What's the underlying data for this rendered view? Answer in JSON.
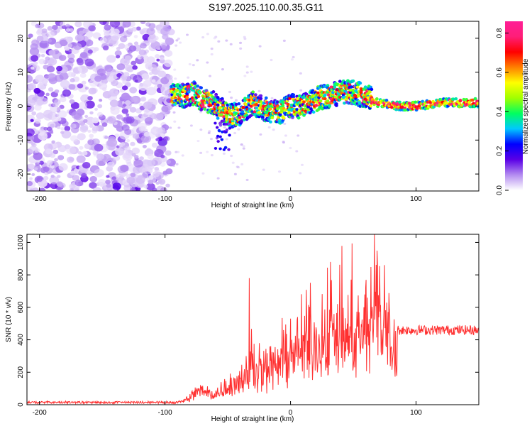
{
  "title": "S197.2025.110.00.35.G11",
  "chart_data": [
    {
      "type": "heatmap",
      "xlabel": "Height of straight line (km)",
      "ylabel": "Frequency (Hz)",
      "xlim": [
        -210,
        150
      ],
      "ylim": [
        -25,
        25
      ],
      "xticks": [
        -200,
        -100,
        0,
        100
      ],
      "yticks": [
        -20,
        -10,
        0,
        10,
        20
      ],
      "colorbar": {
        "label": "Normalized spectral amplitude",
        "range": [
          0,
          0.86
        ],
        "ticks": [
          0.0,
          0.2,
          0.4,
          0.6,
          0.8
        ],
        "colors": [
          "#ffffff",
          "#b48cf0",
          "#5a00e6",
          "#0000ff",
          "#00c8ff",
          "#00ff60",
          "#a0ff00",
          "#ffff00",
          "#ff8000",
          "#ff0000",
          "#ff1e78",
          "#ff1e96"
        ]
      },
      "regions": [
        {
          "name": "noise",
          "x_range": [
            -210,
            -95
          ],
          "y_range": [
            -25,
            25
          ],
          "level": 0.05
        },
        {
          "name": "signal-track",
          "centerline": [
            [
              -95,
              3
            ],
            [
              -85,
              3
            ],
            [
              -78,
              4
            ],
            [
              -70,
              2
            ],
            [
              -62,
              1
            ],
            [
              -55,
              -1
            ],
            [
              -48,
              -3
            ],
            [
              -40,
              -2
            ],
            [
              -30,
              1
            ],
            [
              -20,
              -1
            ],
            [
              -10,
              -2
            ],
            [
              0,
              0
            ],
            [
              10,
              0
            ],
            [
              20,
              2
            ],
            [
              30,
              3
            ],
            [
              40,
              4
            ],
            [
              50,
              4
            ],
            [
              60,
              3
            ],
            [
              65,
              2
            ],
            [
              70,
              1
            ],
            [
              85,
              0
            ],
            [
              100,
              0
            ],
            [
              120,
              1
            ],
            [
              150,
              1
            ]
          ],
          "level_low": 0.3,
          "level_high": 0.85
        }
      ]
    },
    {
      "type": "line",
      "xlabel": "Height of straight line (km)",
      "ylabel": "SNR (10 * v/v)",
      "xlim": [
        -210,
        150
      ],
      "ylim": [
        0,
        1050
      ],
      "xticks": [
        -200,
        -100,
        0,
        100
      ],
      "yticks": [
        0,
        200,
        400,
        600,
        800,
        1000
      ],
      "color": "#ff3030",
      "envelope": [
        {
          "x": -210,
          "base": 20,
          "amp": 10
        },
        {
          "x": -90,
          "base": 20,
          "amp": 10
        },
        {
          "x": -80,
          "base": 40,
          "amp": 60
        },
        {
          "x": -75,
          "base": 100,
          "amp": 120
        },
        {
          "x": -60,
          "base": 80,
          "amp": 80
        },
        {
          "x": -45,
          "base": 150,
          "amp": 200
        },
        {
          "x": -35,
          "base": 180,
          "amp": 250
        },
        {
          "x": -30,
          "base": 250,
          "amp": 520
        },
        {
          "x": -20,
          "base": 220,
          "amp": 300
        },
        {
          "x": -10,
          "base": 280,
          "amp": 400
        },
        {
          "x": 0,
          "base": 350,
          "amp": 450
        },
        {
          "x": 15,
          "base": 400,
          "amp": 600
        },
        {
          "x": 30,
          "base": 450,
          "amp": 700
        },
        {
          "x": 45,
          "base": 420,
          "amp": 750
        },
        {
          "x": 60,
          "base": 450,
          "amp": 780
        },
        {
          "x": 67,
          "base": 600,
          "amp": 1050
        },
        {
          "x": 75,
          "base": 550,
          "amp": 850
        },
        {
          "x": 85,
          "base": 460,
          "amp": 60
        },
        {
          "x": 150,
          "base": 460,
          "amp": 60
        }
      ],
      "peaks": [
        {
          "x": -33,
          "y": 780
        },
        {
          "x": 32,
          "y": 880
        },
        {
          "x": 67,
          "y": 1050
        },
        {
          "x": 75,
          "y": 860
        }
      ]
    }
  ]
}
